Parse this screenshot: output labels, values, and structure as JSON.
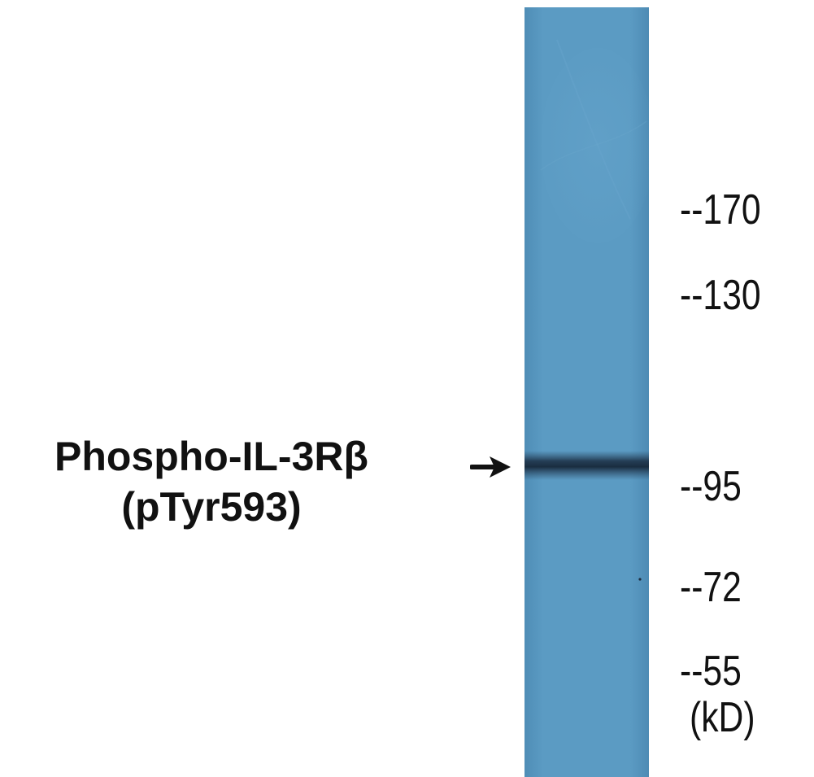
{
  "protein": {
    "line1": "Phospho-IL-3Rβ",
    "line2": "(pTyr593)"
  },
  "markers": [
    {
      "label": "--170",
      "kd": 170
    },
    {
      "label": "--130",
      "kd": 130
    },
    {
      "label": "--95",
      "kd": 95
    },
    {
      "label": "--72",
      "kd": 72
    },
    {
      "label": "--55",
      "kd": 55
    }
  ],
  "unit": "(kD)",
  "band": {
    "kd": 97
  },
  "colors": {
    "membrane": "#5a9ac2",
    "band": "#1c2c3e",
    "text": "#111111"
  },
  "icons": {
    "band_pointer": "arrow-right-icon"
  }
}
